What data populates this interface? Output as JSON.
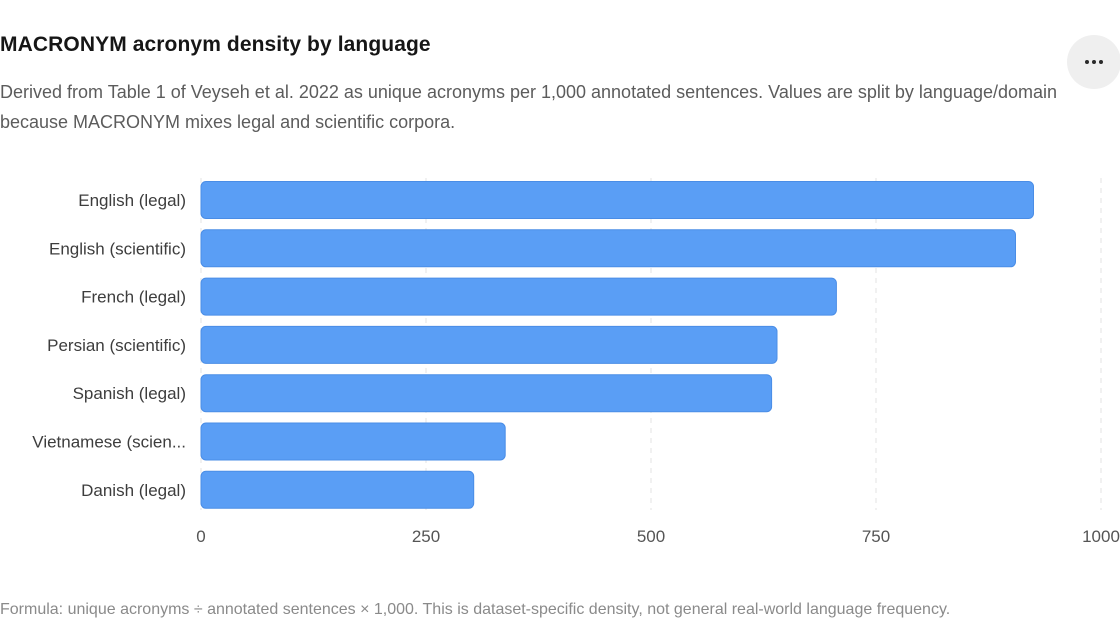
{
  "header": {
    "title": "MACRONYM acronym density by language",
    "subtitle": "Derived from Table 1 of Veyseh et al. 2022 as unique acronyms per 1,000 annotated sentences. Values are split by language/domain because MACRONYM mixes legal and scientific corpora.",
    "menu_icon": "more-horizontal-icon"
  },
  "chart_data": {
    "type": "bar",
    "orientation": "horizontal",
    "categories": [
      "English (legal)",
      "English (scientific)",
      "French (legal)",
      "Persian (scientific)",
      "Spanish (legal)",
      "Vietnamese (scien...",
      "Danish (legal)"
    ],
    "values": [
      925,
      905,
      706,
      640,
      634,
      338,
      303
    ],
    "xlim": [
      0,
      1000
    ],
    "x_ticks": [
      0,
      250,
      500,
      750,
      1000
    ],
    "x_tick_labels": [
      "0",
      "250",
      "500",
      "750",
      "1000"
    ],
    "grid": "vertical dashed",
    "bar_color": "#5a9ef5",
    "bar_stroke": "#4a8de6",
    "title": "",
    "xlabel": "",
    "ylabel": ""
  },
  "footer": {
    "note": "Formula: unique acronyms ÷ annotated sentences × 1,000. This is dataset-specific density, not general real-world language frequency."
  }
}
